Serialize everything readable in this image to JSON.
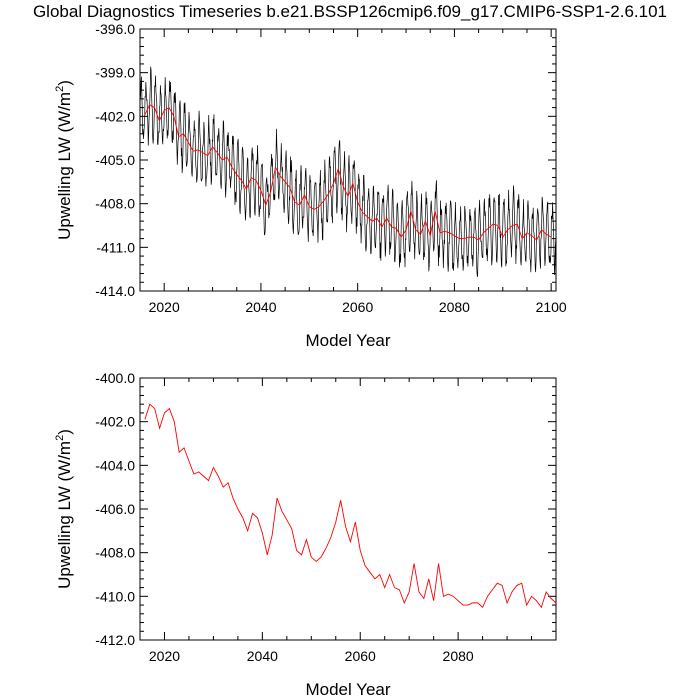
{
  "title": "Global Diagnostics Timeseries b.e21.BSSP126cmip6.f09_g17.CMIP6-SSP1-2.6.101",
  "colors": {
    "monthly": "#000000",
    "annual": "#ff0000",
    "axis": "#000000"
  },
  "chart_data": [
    {
      "type": "line",
      "xlabel": "Model Year",
      "ylabel_main": "Upwelling LW (W/m",
      "ylabel_sup": "2",
      "ylabel_close": ")",
      "xlim": [
        2015,
        2101
      ],
      "ylim": [
        -414.0,
        -396.0
      ],
      "x_ticks": [
        2020,
        2040,
        2060,
        2080,
        2100
      ],
      "x_tick_labels": [
        "2020",
        "2040",
        "2060",
        "2080",
        "2100"
      ],
      "y_ticks": [
        -414,
        -411,
        -408,
        -405,
        -402,
        -399,
        -396
      ],
      "y_tick_labels": [
        "-414.0",
        "-411.0",
        "-408.0",
        "-405.0",
        "-402.0",
        "-399.0",
        "-396.0"
      ],
      "monthly_series": {
        "seasonal_amplitude": 2.0
      },
      "annual_series": {
        "x": [
          2016,
          2017,
          2018,
          2019,
          2020,
          2021,
          2022,
          2023,
          2024,
          2025,
          2026,
          2027,
          2028,
          2029,
          2030,
          2031,
          2032,
          2033,
          2034,
          2035,
          2036,
          2037,
          2038,
          2039,
          2040,
          2041,
          2042,
          2043,
          2044,
          2045,
          2046,
          2047,
          2048,
          2049,
          2050,
          2051,
          2052,
          2053,
          2054,
          2055,
          2056,
          2057,
          2058,
          2059,
          2060,
          2061,
          2062,
          2063,
          2064,
          2065,
          2066,
          2067,
          2068,
          2069,
          2070,
          2071,
          2072,
          2073,
          2074,
          2075,
          2076,
          2077,
          2078,
          2079,
          2080,
          2081,
          2082,
          2083,
          2084,
          2085,
          2086,
          2087,
          2088,
          2089,
          2090,
          2091,
          2092,
          2093,
          2094,
          2095,
          2096,
          2097,
          2098,
          2099,
          2100
        ],
        "y": [
          -401.9,
          -401.2,
          -401.4,
          -402.3,
          -401.6,
          -401.4,
          -402.0,
          -403.4,
          -403.2,
          -403.8,
          -404.4,
          -404.3,
          -404.5,
          -404.7,
          -404.1,
          -404.5,
          -405.0,
          -404.8,
          -405.5,
          -406.0,
          -406.4,
          -407.0,
          -406.2,
          -406.4,
          -407.1,
          -408.1,
          -407.2,
          -405.5,
          -406.1,
          -406.5,
          -406.9,
          -407.9,
          -408.1,
          -407.4,
          -408.2,
          -408.4,
          -408.2,
          -407.8,
          -407.3,
          -406.6,
          -405.6,
          -406.8,
          -407.5,
          -406.6,
          -407.9,
          -408.6,
          -408.9,
          -409.2,
          -409.0,
          -409.6,
          -409.0,
          -409.6,
          -409.7,
          -410.3,
          -409.8,
          -408.5,
          -409.8,
          -410.1,
          -409.2,
          -410.2,
          -408.5,
          -410.0,
          -409.9,
          -410.0,
          -410.2,
          -410.4,
          -410.4,
          -410.3,
          -410.3,
          -410.5,
          -410.0,
          -409.7,
          -409.4,
          -409.5,
          -410.3,
          -409.8,
          -409.5,
          -409.4,
          -410.4,
          -410.0,
          -410.2,
          -410.5,
          -409.8,
          -410.1,
          -410.3
        ]
      }
    },
    {
      "type": "line",
      "xlabel": "Model Year",
      "ylabel_main": "Upwelling LW (W/m",
      "ylabel_sup": "2",
      "ylabel_close": ")",
      "xlim": [
        2015,
        2100
      ],
      "ylim": [
        -412.0,
        -400.0
      ],
      "x_ticks": [
        2020,
        2040,
        2060,
        2080
      ],
      "x_tick_labels": [
        "2020",
        "2040",
        "2060",
        "2080"
      ],
      "y_ticks": [
        -412,
        -410,
        -408,
        -406,
        -404,
        -402,
        -400
      ],
      "y_tick_labels": [
        "-412.0",
        "-410.0",
        "-408.0",
        "-406.0",
        "-404.0",
        "-402.0",
        "-400.0"
      ]
    }
  ]
}
